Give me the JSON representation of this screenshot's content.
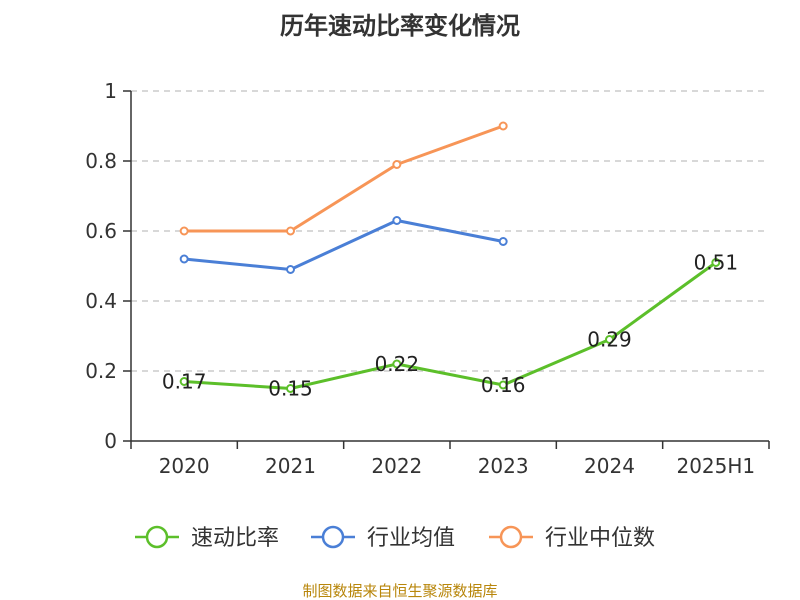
{
  "chart_data": {
    "type": "line",
    "title": "历年速动比率变化情况",
    "categories": [
      "2020",
      "2021",
      "2022",
      "2023",
      "2024",
      "2025H1"
    ],
    "ylim": [
      0,
      1
    ],
    "yticks": [
      "0",
      "0.2",
      "0.4",
      "0.6",
      "0.8",
      "1"
    ],
    "grid": true,
    "legend_position": "bottom",
    "series": [
      {
        "name": "速动比率",
        "color": "#5cbf2a",
        "values": [
          0.17,
          0.15,
          0.22,
          0.16,
          0.29,
          0.51
        ],
        "labels": [
          "0.17",
          "0.15",
          "0.22",
          "0.16",
          "0.29",
          "0.51"
        ]
      },
      {
        "name": "行业均值",
        "color": "#4a7fd6",
        "values": [
          0.52,
          0.49,
          0.63,
          0.57,
          null,
          null
        ]
      },
      {
        "name": "行业中位数",
        "color": "#f79557",
        "values": [
          0.6,
          0.6,
          0.79,
          0.9,
          null,
          null
        ]
      }
    ]
  },
  "source": "制图数据来自恒生聚源数据库"
}
